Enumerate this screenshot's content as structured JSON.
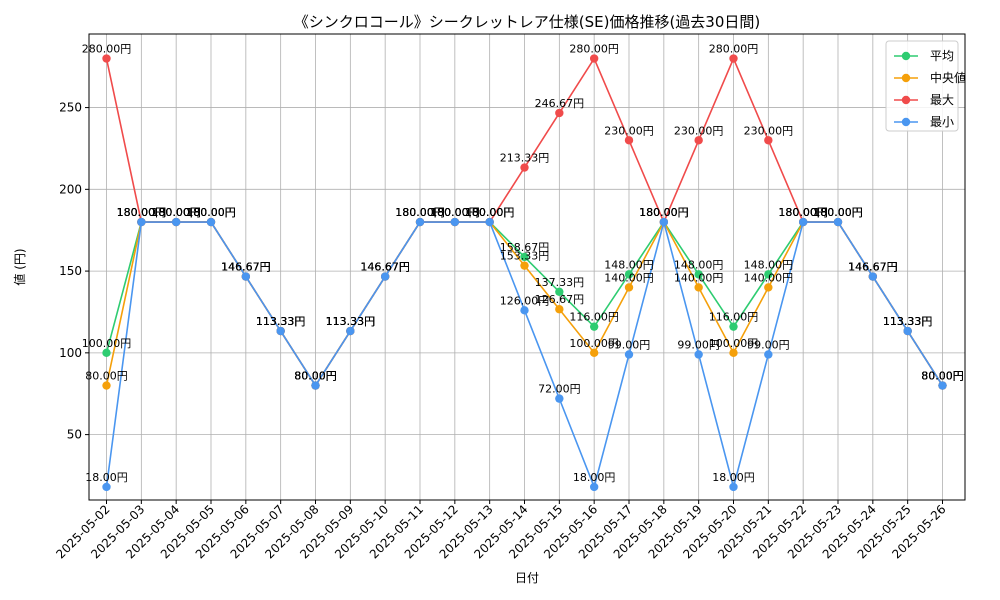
{
  "chart_data": {
    "type": "line",
    "title": "《シンクロコール》シークレットレア仕様(SE)価格推移(過去30日間)",
    "xlabel": "日付",
    "ylabel": "値 (円)",
    "ylim": [
      10,
      295
    ],
    "yticks": [
      50,
      100,
      150,
      200,
      250
    ],
    "grid": true,
    "legend_position": "top-right",
    "value_suffix": "円",
    "categories": [
      "2025-05-02",
      "2025-05-03",
      "2025-05-04",
      "2025-05-05",
      "2025-05-06",
      "2025-05-07",
      "2025-05-08",
      "2025-05-09",
      "2025-05-10",
      "2025-05-11",
      "2025-05-12",
      "2025-05-13",
      "2025-05-14",
      "2025-05-15",
      "2025-05-16",
      "2025-05-17",
      "2025-05-18",
      "2025-05-19",
      "2025-05-20",
      "2025-05-21",
      "2025-05-22",
      "2025-05-23",
      "2025-05-24",
      "2025-05-25",
      "2025-05-26"
    ],
    "series": [
      {
        "name": "平均",
        "color": "#2ecc71",
        "values": [
          100,
          180,
          180,
          180,
          146.67,
          113.33,
          80,
          113.33,
          146.67,
          180,
          180,
          180,
          158.67,
          137.33,
          116,
          148,
          180,
          148,
          116,
          148,
          180,
          180,
          146.67,
          113.33,
          80
        ]
      },
      {
        "name": "中央値",
        "color": "#f5a00a",
        "values": [
          80,
          180,
          180,
          180,
          146.67,
          113.33,
          80,
          113.33,
          146.67,
          180,
          180,
          180,
          153.33,
          126.67,
          100,
          140,
          180,
          140,
          100,
          140,
          180,
          180,
          146.67,
          113.33,
          80
        ]
      },
      {
        "name": "最大",
        "color": "#f04b4b",
        "values": [
          280,
          180,
          180,
          180,
          146.67,
          113.33,
          80,
          113.33,
          146.67,
          180,
          180,
          180,
          213.33,
          246.67,
          280,
          230,
          180,
          230,
          280,
          230,
          180,
          180,
          146.67,
          113.33,
          80
        ]
      },
      {
        "name": "最小",
        "color": "#4a96f0",
        "values": [
          18,
          180,
          180,
          180,
          146.67,
          113.33,
          80,
          113.33,
          146.67,
          180,
          180,
          180,
          126,
          72,
          18,
          99,
          180,
          99,
          18,
          99,
          180,
          180,
          146.67,
          113.33,
          80
        ]
      }
    ]
  }
}
